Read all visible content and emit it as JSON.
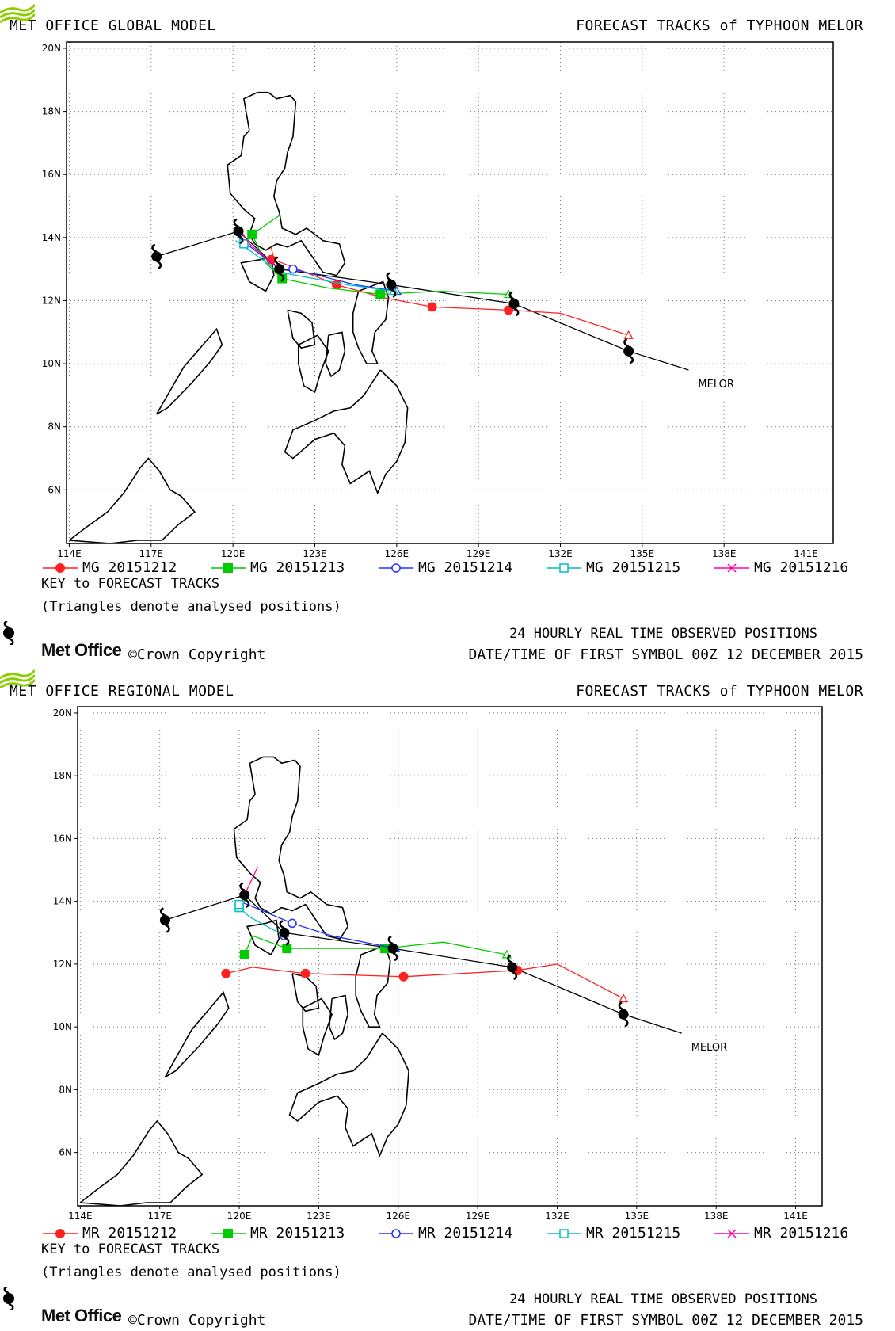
{
  "panels": [
    {
      "id": "global",
      "model_title": "MET OFFICE GLOBAL MODEL",
      "forecast_title": "FORECAST TRACKS of TYPHOON MELOR",
      "key_title": "KEY to FORECAST TRACKS",
      "key_note": "(Triangles denote analysed positions)",
      "observed_label": "24 HOURLY REAL TIME OBSERVED POSITIONS",
      "datetime_label": "DATE/TIME OF FIRST SYMBOL 00Z 12 DECEMBER 2015",
      "brand": "Met Office",
      "copyright": "©Crown Copyright",
      "storm_label": "MELOR",
      "legend": [
        {
          "label": "MG 20151212",
          "color": "#ff2020",
          "marker": "filled-circle"
        },
        {
          "label": "MG 20151213",
          "color": "#00cc00",
          "marker": "filled-square"
        },
        {
          "label": "MG 20151214",
          "color": "#2030ff",
          "marker": "open-circle"
        },
        {
          "label": "MG 20151215",
          "color": "#00c0c0",
          "marker": "open-square"
        },
        {
          "label": "MG 20151216",
          "color": "#ff00a0",
          "marker": "cross"
        }
      ],
      "x_ticks": [
        "114E",
        "117E",
        "120E",
        "123E",
        "126E",
        "129E",
        "132E",
        "135E",
        "138E",
        "141E"
      ],
      "y_ticks": [
        "6N",
        "8N",
        "10N",
        "12N",
        "14N",
        "16N",
        "18N",
        "20N"
      ]
    },
    {
      "id": "regional",
      "model_title": "MET OFFICE REGIONAL MODEL",
      "forecast_title": "FORECAST TRACKS of TYPHOON MELOR",
      "key_title": "KEY to FORECAST TRACKS",
      "key_note": "(Triangles denote analysed positions)",
      "observed_label": "24 HOURLY REAL TIME OBSERVED POSITIONS",
      "datetime_label": "DATE/TIME OF FIRST SYMBOL 00Z 12 DECEMBER 2015",
      "brand": "Met Office",
      "copyright": "©Crown Copyright",
      "storm_label": "MELOR",
      "legend": [
        {
          "label": "MR 20151212",
          "color": "#ff2020",
          "marker": "filled-circle"
        },
        {
          "label": "MR 20151213",
          "color": "#00cc00",
          "marker": "filled-square"
        },
        {
          "label": "MR 20151214",
          "color": "#2030ff",
          "marker": "open-circle"
        },
        {
          "label": "MR 20151215",
          "color": "#00c0c0",
          "marker": "open-square"
        },
        {
          "label": "MR 20151216",
          "color": "#ff00a0",
          "marker": "cross"
        }
      ],
      "x_ticks": [
        "114E",
        "117E",
        "120E",
        "123E",
        "126E",
        "129E",
        "132E",
        "135E",
        "138E",
        "141E"
      ],
      "y_ticks": [
        "6N",
        "8N",
        "10N",
        "12N",
        "14N",
        "16N",
        "18N",
        "20N"
      ]
    }
  ],
  "map_data": {
    "lon_range": [
      113.9,
      142.0
    ],
    "lat_range": [
      4.3,
      20.2
    ],
    "observed_track": [
      [
        117.2,
        13.4
      ],
      [
        120.2,
        14.2
      ],
      [
        121.7,
        13.0
      ],
      [
        125.8,
        12.5
      ],
      [
        130.3,
        11.9
      ],
      [
        134.5,
        10.4
      ],
      [
        136.7,
        9.8
      ]
    ],
    "observed_symbols": [
      [
        117.2,
        13.4
      ],
      [
        120.2,
        14.2
      ],
      [
        121.7,
        13.0
      ],
      [
        125.8,
        12.5
      ],
      [
        130.3,
        11.9
      ],
      [
        134.5,
        10.4
      ]
    ],
    "global_tracks": [
      {
        "legend_index": 0,
        "points": [
          [
            121.4,
            13.7
          ],
          [
            121.5,
            13.3
          ],
          [
            123.8,
            12.5
          ],
          [
            125.5,
            12.1
          ],
          [
            127.3,
            11.8
          ],
          [
            130.1,
            11.7
          ],
          [
            132.0,
            11.6
          ],
          [
            134.5,
            10.9
          ]
        ],
        "markers": [
          [
            121.4,
            13.3
          ],
          [
            123.8,
            12.5
          ],
          [
            127.3,
            11.8
          ],
          [
            130.1,
            11.7
          ]
        ]
      },
      {
        "legend_index": 1,
        "points": [
          [
            121.7,
            14.7
          ],
          [
            120.7,
            14.1
          ],
          [
            121.2,
            13.2
          ],
          [
            121.8,
            12.7
          ],
          [
            123.5,
            12.4
          ],
          [
            125.4,
            12.2
          ],
          [
            127.6,
            12.3
          ],
          [
            130.1,
            12.2
          ]
        ],
        "markers": [
          [
            120.7,
            14.1
          ],
          [
            121.8,
            12.7
          ],
          [
            125.4,
            12.2
          ]
        ]
      },
      {
        "legend_index": 2,
        "points": [
          [
            120.2,
            14.0
          ],
          [
            120.8,
            13.6
          ],
          [
            121.7,
            13.0
          ],
          [
            122.2,
            13.0
          ],
          [
            124.5,
            12.5
          ],
          [
            126.0,
            12.3
          ]
        ],
        "markers": [
          [
            121.7,
            13.0
          ],
          [
            122.2,
            13.0
          ]
        ]
      },
      {
        "legend_index": 3,
        "points": [
          [
            120.1,
            13.9
          ],
          [
            120.6,
            13.6
          ],
          [
            121.7,
            12.9
          ],
          [
            124.2,
            12.5
          ],
          [
            125.9,
            12.3
          ]
        ],
        "markers": [
          [
            120.4,
            13.8
          ]
        ]
      },
      {
        "legend_index": 4,
        "points": [
          [
            120.3,
            14.2
          ],
          [
            120.6,
            13.8
          ],
          [
            121.7,
            13.0
          ]
        ],
        "markers": []
      }
    ],
    "regional_tracks": [
      {
        "legend_index": 0,
        "points": [
          [
            119.5,
            11.7
          ],
          [
            120.5,
            11.9
          ],
          [
            122.5,
            11.7
          ],
          [
            126.2,
            11.6
          ],
          [
            130.5,
            11.8
          ],
          [
            132.0,
            12.0
          ],
          [
            134.5,
            10.9
          ]
        ],
        "markers": [
          [
            119.5,
            11.7
          ],
          [
            122.5,
            11.7
          ],
          [
            126.2,
            11.6
          ],
          [
            130.5,
            11.8
          ]
        ]
      },
      {
        "legend_index": 1,
        "points": [
          [
            120.2,
            12.3
          ],
          [
            120.5,
            12.9
          ],
          [
            121.8,
            12.5
          ],
          [
            125.5,
            12.5
          ],
          [
            127.7,
            12.7
          ],
          [
            130.1,
            12.3
          ]
        ],
        "markers": [
          [
            120.2,
            12.3
          ],
          [
            121.8,
            12.5
          ],
          [
            125.5,
            12.5
          ]
        ]
      },
      {
        "legend_index": 2,
        "points": [
          [
            120.0,
            14.0
          ],
          [
            120.6,
            13.8
          ],
          [
            122.0,
            13.3
          ],
          [
            123.5,
            12.9
          ],
          [
            125.9,
            12.5
          ]
        ],
        "markers": [
          [
            122.0,
            13.3
          ],
          [
            121.7,
            12.9
          ]
        ]
      },
      {
        "legend_index": 3,
        "points": [
          [
            120.0,
            13.8
          ],
          [
            120.4,
            13.5
          ],
          [
            121.7,
            12.9
          ]
        ],
        "markers": [
          [
            120.0,
            13.8
          ],
          [
            120.0,
            13.9
          ]
        ]
      },
      {
        "legend_index": 4,
        "points": [
          [
            120.7,
            15.1
          ],
          [
            120.2,
            14.2
          ]
        ],
        "markers": []
      }
    ],
    "coastlines": [
      [
        [
          120.6,
          17.4
        ],
        [
          120.4,
          18.4
        ],
        [
          120.9,
          18.6
        ],
        [
          121.3,
          18.6
        ],
        [
          121.6,
          18.4
        ],
        [
          122.1,
          18.5
        ],
        [
          122.3,
          18.3
        ],
        [
          122.2,
          17.2
        ],
        [
          122.0,
          16.7
        ],
        [
          121.9,
          16.2
        ],
        [
          121.6,
          15.8
        ],
        [
          121.5,
          15.3
        ],
        [
          121.7,
          14.8
        ],
        [
          121.8,
          14.3
        ],
        [
          122.3,
          14.1
        ],
        [
          122.7,
          14.3
        ],
        [
          123.3,
          13.9
        ],
        [
          123.9,
          13.8
        ],
        [
          124.1,
          13.2
        ],
        [
          123.8,
          12.8
        ],
        [
          123.3,
          12.9
        ],
        [
          122.9,
          13.4
        ],
        [
          122.5,
          13.9
        ],
        [
          122.0,
          13.7
        ],
        [
          121.6,
          13.8
        ],
        [
          121.2,
          13.6
        ],
        [
          120.8,
          13.8
        ],
        [
          120.6,
          14.1
        ],
        [
          120.8,
          14.6
        ],
        [
          120.4,
          14.9
        ],
        [
          119.9,
          15.4
        ],
        [
          119.8,
          16.3
        ],
        [
          120.3,
          16.6
        ],
        [
          120.4,
          17.2
        ],
        [
          120.6,
          17.4
        ]
      ],
      [
        [
          121.0,
          13.3
        ],
        [
          121.4,
          13.4
        ],
        [
          121.5,
          12.8
        ],
        [
          121.2,
          12.3
        ],
        [
          120.6,
          12.6
        ],
        [
          120.3,
          13.2
        ],
        [
          121.0,
          13.3
        ]
      ],
      [
        [
          117.2,
          8.4
        ],
        [
          117.6,
          8.6
        ],
        [
          118.5,
          9.4
        ],
        [
          119.2,
          10.1
        ],
        [
          119.6,
          10.6
        ],
        [
          119.4,
          11.1
        ],
        [
          118.8,
          10.5
        ],
        [
          118.2,
          9.9
        ],
        [
          117.2,
          8.4
        ]
      ],
      [
        [
          125.2,
          12.5
        ],
        [
          125.5,
          12.6
        ],
        [
          125.7,
          12.1
        ],
        [
          125.6,
          11.4
        ],
        [
          125.2,
          11.0
        ],
        [
          125.1,
          10.4
        ],
        [
          125.3,
          10.0
        ],
        [
          124.9,
          10.0
        ],
        [
          124.6,
          10.5
        ],
        [
          124.4,
          11.0
        ],
        [
          124.4,
          11.6
        ],
        [
          124.6,
          12.3
        ],
        [
          125.2,
          12.5
        ]
      ],
      [
        [
          122.0,
          11.7
        ],
        [
          122.5,
          11.6
        ],
        [
          122.9,
          11.3
        ],
        [
          123.0,
          10.6
        ],
        [
          122.5,
          10.5
        ],
        [
          122.2,
          10.8
        ],
        [
          122.0,
          11.7
        ]
      ],
      [
        [
          122.4,
          10.6
        ],
        [
          123.1,
          10.9
        ],
        [
          123.5,
          10.4
        ],
        [
          123.2,
          9.7
        ],
        [
          123.0,
          9.1
        ],
        [
          122.6,
          9.3
        ],
        [
          122.4,
          10.0
        ],
        [
          122.4,
          10.6
        ]
      ],
      [
        [
          123.5,
          10.9
        ],
        [
          124.0,
          11.0
        ],
        [
          124.1,
          10.4
        ],
        [
          123.9,
          9.8
        ],
        [
          123.6,
          9.6
        ],
        [
          123.4,
          10.0
        ],
        [
          123.5,
          10.9
        ]
      ],
      [
        [
          125.4,
          9.8
        ],
        [
          126.0,
          9.3
        ],
        [
          126.4,
          8.6
        ],
        [
          126.3,
          7.5
        ],
        [
          126.0,
          6.9
        ],
        [
          125.6,
          6.5
        ],
        [
          125.3,
          5.9
        ],
        [
          125.0,
          6.6
        ],
        [
          124.3,
          6.2
        ],
        [
          124.0,
          6.8
        ],
        [
          124.1,
          7.4
        ],
        [
          123.7,
          7.8
        ],
        [
          123.0,
          7.6
        ],
        [
          122.2,
          7.0
        ],
        [
          121.9,
          7.2
        ],
        [
          122.2,
          7.9
        ],
        [
          123.0,
          8.2
        ],
        [
          123.7,
          8.5
        ],
        [
          124.3,
          8.6
        ],
        [
          124.8,
          9.0
        ],
        [
          125.4,
          9.8
        ]
      ],
      [
        [
          114.0,
          4.4
        ],
        [
          114.6,
          4.8
        ],
        [
          115.4,
          5.3
        ],
        [
          116.0,
          5.9
        ],
        [
          116.6,
          6.7
        ],
        [
          116.9,
          7.0
        ],
        [
          117.3,
          6.6
        ],
        [
          117.7,
          6.0
        ],
        [
          118.1,
          5.8
        ],
        [
          118.6,
          5.3
        ],
        [
          118.0,
          4.9
        ],
        [
          117.4,
          4.4
        ],
        [
          116.5,
          4.4
        ],
        [
          115.5,
          4.3
        ],
        [
          114.0,
          4.4
        ]
      ]
    ]
  }
}
